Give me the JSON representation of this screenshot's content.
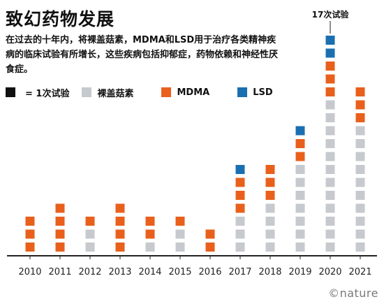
{
  "header": {
    "title": "致幻药物发展",
    "subtitle": "在过去的十年内，将裸盖菇素，MDMA和LSD用于治疗各类精神疾病的临床试验有所增长，这些疾病包括抑郁症，药物依赖和神经性厌食症。"
  },
  "legend": {
    "unit_label": "= 1次试验",
    "items": [
      {
        "label": "裸盖菇素",
        "color": "#c6c9cd"
      },
      {
        "label": "MDMA",
        "color": "#e8601c"
      },
      {
        "label": "LSD",
        "color": "#1a6fb0"
      }
    ],
    "unit_color": "#111111"
  },
  "credit": "©nature",
  "chart_data": {
    "type": "bar",
    "stacked": true,
    "unit": "trials",
    "categories": [
      "2010",
      "2011",
      "2012",
      "2013",
      "2014",
      "2015",
      "2016",
      "2017",
      "2018",
      "2019",
      "2020",
      "2021"
    ],
    "series": [
      {
        "name": "裸盖菇素",
        "color": "#c6c9cd",
        "values": [
          0,
          0,
          2,
          0,
          1,
          2,
          0,
          3,
          4,
          7,
          12,
          10
        ]
      },
      {
        "name": "MDMA",
        "color": "#e8601c",
        "values": [
          3,
          4,
          1,
          4,
          2,
          1,
          2,
          3,
          3,
          2,
          3,
          3
        ]
      },
      {
        "name": "LSD",
        "color": "#1a6fb0",
        "values": [
          0,
          0,
          0,
          0,
          0,
          0,
          0,
          1,
          0,
          1,
          2,
          0
        ]
      }
    ],
    "annotations": [
      {
        "category": "2020",
        "text": "17次试验"
      }
    ]
  }
}
